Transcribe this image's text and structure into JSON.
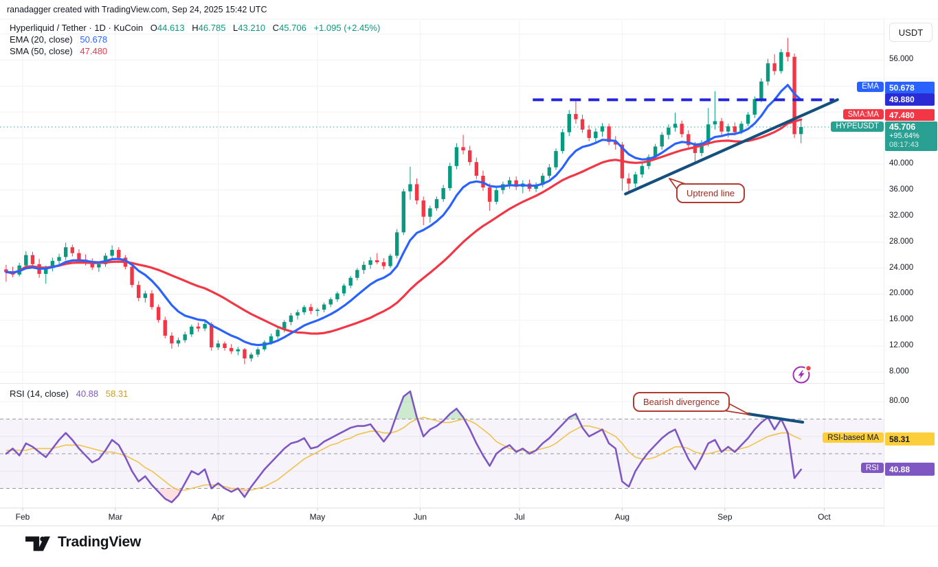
{
  "header": {
    "attribution": "ranadagger created with TradingView.com, Sep 24, 2025 15:42 UTC"
  },
  "legend": {
    "symbol": "Hyperliquid / Tether · 1D · KuCoin",
    "o_label": "O",
    "o_value": "44.613",
    "h_label": "H",
    "h_value": "46.785",
    "l_label": "L",
    "l_value": "43.210",
    "c_label": "C",
    "c_value": "45.706",
    "change": "+1.095 (+2.45%)",
    "ema_label": "EMA (20, close)",
    "ema_value": "50.678",
    "sma_label": "SMA (50, close)",
    "sma_value": "47.480"
  },
  "rsi_legend": {
    "label": "RSI (14, close)",
    "rsi_value": "40.88",
    "ma_value": "58.31"
  },
  "axis": {
    "currency": "USDT",
    "price_ticks": [
      {
        "value": 56,
        "label": "56.000"
      },
      {
        "value": 40,
        "label": "40.000"
      },
      {
        "value": 36,
        "label": "36.000"
      },
      {
        "value": 32,
        "label": "32.000"
      },
      {
        "value": 28,
        "label": "28.000"
      },
      {
        "value": 24,
        "label": "24.000"
      },
      {
        "value": 20,
        "label": "20.000"
      },
      {
        "value": 16,
        "label": "16.000"
      },
      {
        "value": 12,
        "label": "12.000"
      },
      {
        "value": 8,
        "label": "8.000"
      }
    ],
    "ema_pill": "EMA",
    "ema_badge": "50.678",
    "level_badge": "49.880",
    "sma_pill": "SMA:MA",
    "sma_badge": "47.480",
    "symbol_pill": "HYPEUSDT",
    "last_price": "45.706",
    "last_change": "+95.64%",
    "countdown": "08:17:43",
    "rsi_tick": {
      "value": 80,
      "label": "80.00"
    },
    "rsi_ma_pill": "RSI-based MA",
    "rsi_ma_badge": "58.31",
    "rsi_pill": "RSI",
    "rsi_badge": "40.88"
  },
  "time_axis": {
    "months": [
      {
        "label": "Feb",
        "day": 5
      },
      {
        "label": "Mar",
        "day": 33
      },
      {
        "label": "Apr",
        "day": 64
      },
      {
        "label": "May",
        "day": 94
      },
      {
        "label": "Jun",
        "day": 125
      },
      {
        "label": "Jul",
        "day": 155
      },
      {
        "label": "Aug",
        "day": 186
      },
      {
        "label": "Sep",
        "day": 217
      },
      {
        "label": "Oct",
        "day": 247
      }
    ]
  },
  "annotations": {
    "uptrend": "Uptrend line",
    "divergence": "Bearish divergence"
  },
  "logo": {
    "text": "TradingView"
  },
  "colors": {
    "up": "#089981",
    "down": "#f23645",
    "ema": "#2962ff",
    "sma": "#f23645",
    "level": "#2323dd",
    "trend": "#14507d",
    "rsi": "#7e57c2",
    "rsi_ma": "#f0c24a",
    "last": "#2aa092",
    "grid": "#eff1f4",
    "badge_yellow": "#fbce3a",
    "band_fill": "rgba(126,87,194,0.07)",
    "over_fill": "rgba(76,175,80,0.28)",
    "under_fill": "rgba(242,54,69,0.16)",
    "guide": "#9598a1",
    "text": "#131722"
  },
  "chart_data": {
    "type": "candlestick",
    "title": "Hyperliquid / Tether · 1D · KuCoin",
    "symbol": "HYPEUSDT",
    "interval": "1D",
    "bar_days": 2,
    "start_day": 0,
    "price_ylim": [
      6.3,
      62.1
    ],
    "price_grid_step": 4,
    "rsi_ylim": [
      20,
      90
    ],
    "rsi_levels": {
      "upper": 70,
      "middle": 50,
      "lower": 30
    },
    "last_price": 45.706,
    "ema_period": 20,
    "sma_period": 50,
    "rsi_period": 14,
    "candles": [
      [
        23.8,
        24.5,
        21.9,
        23.4
      ],
      [
        23.4,
        24.2,
        22.6,
        23.0
      ],
      [
        23.0,
        24.8,
        22.7,
        24.4
      ],
      [
        24.4,
        26.6,
        24.0,
        26.0
      ],
      [
        26.0,
        26.5,
        24.2,
        24.6
      ],
      [
        24.6,
        25.4,
        22.5,
        23.1
      ],
      [
        23.1,
        24.4,
        21.6,
        24.0
      ],
      [
        24.0,
        25.6,
        23.5,
        25.1
      ],
      [
        25.1,
        26.2,
        24.4,
        25.7
      ],
      [
        25.7,
        27.9,
        25.2,
        27.2
      ],
      [
        27.2,
        27.6,
        25.8,
        26.3
      ],
      [
        26.3,
        26.9,
        24.9,
        25.3
      ],
      [
        25.3,
        26.1,
        24.4,
        24.8
      ],
      [
        24.8,
        25.5,
        23.7,
        24.1
      ],
      [
        24.1,
        25.0,
        23.4,
        24.6
      ],
      [
        24.6,
        26.3,
        24.2,
        25.9
      ],
      [
        25.9,
        27.5,
        25.4,
        26.8
      ],
      [
        26.8,
        27.2,
        25.2,
        25.6
      ],
      [
        25.6,
        26.0,
        23.8,
        24.2
      ],
      [
        24.2,
        24.6,
        21.0,
        21.4
      ],
      [
        21.4,
        22.0,
        18.9,
        19.4
      ],
      [
        19.4,
        20.5,
        18.7,
        20.1
      ],
      [
        20.1,
        20.6,
        17.6,
        18.0
      ],
      [
        18.0,
        18.4,
        15.6,
        16.0
      ],
      [
        16.0,
        16.5,
        13.2,
        13.6
      ],
      [
        13.6,
        14.1,
        11.6,
        12.4
      ],
      [
        12.4,
        13.3,
        11.9,
        12.9
      ],
      [
        12.9,
        14.2,
        12.5,
        13.8
      ],
      [
        13.8,
        15.3,
        13.4,
        15.0
      ],
      [
        15.0,
        15.6,
        14.2,
        14.7
      ],
      [
        14.7,
        15.8,
        14.3,
        15.4
      ],
      [
        15.4,
        15.7,
        11.3,
        11.8
      ],
      [
        11.8,
        12.9,
        11.4,
        12.4
      ],
      [
        12.4,
        12.7,
        11.3,
        11.7
      ],
      [
        11.7,
        12.3,
        10.8,
        11.2
      ],
      [
        11.2,
        11.9,
        10.6,
        11.5
      ],
      [
        11.5,
        11.7,
        9.2,
        10.1
      ],
      [
        10.1,
        11.0,
        9.6,
        10.7
      ],
      [
        10.7,
        11.8,
        10.3,
        11.5
      ],
      [
        11.5,
        12.9,
        11.2,
        12.6
      ],
      [
        12.6,
        13.9,
        12.2,
        13.5
      ],
      [
        13.5,
        14.8,
        13.1,
        14.5
      ],
      [
        14.5,
        16.0,
        14.1,
        15.7
      ],
      [
        15.7,
        17.1,
        15.2,
        16.7
      ],
      [
        16.7,
        17.6,
        16.1,
        17.2
      ],
      [
        17.2,
        18.3,
        16.8,
        18.0
      ],
      [
        18.0,
        18.5,
        16.9,
        17.4
      ],
      [
        17.4,
        17.9,
        16.6,
        17.6
      ],
      [
        17.6,
        18.7,
        17.2,
        18.4
      ],
      [
        18.4,
        19.5,
        18.0,
        19.2
      ],
      [
        19.2,
        20.4,
        18.8,
        20.1
      ],
      [
        20.1,
        21.6,
        19.7,
        21.3
      ],
      [
        21.3,
        22.8,
        20.9,
        22.5
      ],
      [
        22.5,
        24.0,
        22.1,
        23.7
      ],
      [
        23.7,
        25.0,
        23.1,
        24.5
      ],
      [
        24.5,
        25.7,
        23.9,
        25.2
      ],
      [
        25.2,
        26.3,
        24.6,
        24.9
      ],
      [
        24.9,
        25.5,
        23.8,
        24.3
      ],
      [
        24.3,
        26.2,
        24.0,
        25.9
      ],
      [
        25.9,
        30.0,
        25.5,
        29.5
      ],
      [
        29.5,
        36.2,
        29.1,
        35.8
      ],
      [
        35.8,
        39.6,
        34.5,
        36.9
      ],
      [
        36.9,
        37.8,
        33.8,
        34.4
      ],
      [
        34.4,
        35.0,
        30.6,
        31.9
      ],
      [
        31.9,
        33.6,
        31.0,
        33.2
      ],
      [
        33.2,
        35.0,
        32.8,
        34.6
      ],
      [
        34.6,
        36.8,
        34.2,
        36.3
      ],
      [
        36.3,
        40.2,
        35.9,
        39.7
      ],
      [
        39.7,
        43.2,
        39.2,
        42.6
      ],
      [
        42.6,
        44.5,
        41.5,
        42.1
      ],
      [
        42.1,
        42.8,
        39.8,
        40.3
      ],
      [
        40.3,
        41.0,
        37.7,
        38.2
      ],
      [
        38.2,
        39.0,
        35.9,
        36.4
      ],
      [
        36.4,
        37.0,
        32.8,
        34.2
      ],
      [
        34.2,
        36.5,
        33.8,
        36.0
      ],
      [
        36.0,
        37.3,
        35.4,
        36.9
      ],
      [
        36.9,
        38.0,
        36.2,
        37.5
      ],
      [
        37.5,
        38.1,
        36.0,
        36.5
      ],
      [
        36.5,
        37.5,
        35.5,
        37.0
      ],
      [
        37.0,
        37.6,
        35.8,
        36.2
      ],
      [
        36.2,
        37.2,
        35.7,
        36.8
      ],
      [
        36.8,
        38.6,
        36.4,
        38.2
      ],
      [
        38.2,
        40.0,
        37.8,
        39.5
      ],
      [
        39.5,
        42.4,
        39.1,
        42.0
      ],
      [
        42.0,
        45.4,
        41.6,
        44.9
      ],
      [
        44.9,
        48.3,
        44.3,
        47.7
      ],
      [
        47.7,
        49.9,
        46.2,
        46.9
      ],
      [
        46.9,
        47.6,
        44.8,
        45.3
      ],
      [
        45.3,
        46.0,
        43.5,
        44.0
      ],
      [
        44.0,
        45.5,
        43.4,
        45.0
      ],
      [
        45.0,
        46.3,
        44.2,
        45.8
      ],
      [
        45.8,
        46.2,
        42.9,
        43.4
      ],
      [
        43.4,
        44.3,
        42.2,
        43.0
      ],
      [
        43.0,
        43.4,
        35.9,
        37.8
      ],
      [
        37.8,
        38.6,
        35.6,
        37.0
      ],
      [
        37.0,
        38.8,
        36.4,
        38.4
      ],
      [
        38.4,
        40.1,
        37.9,
        39.7
      ],
      [
        39.7,
        41.5,
        39.2,
        41.1
      ],
      [
        41.1,
        43.1,
        40.6,
        42.7
      ],
      [
        42.7,
        44.9,
        42.2,
        44.5
      ],
      [
        44.5,
        46.1,
        43.8,
        45.6
      ],
      [
        45.6,
        47.9,
        45.0,
        46.2
      ],
      [
        46.2,
        46.7,
        44.1,
        44.6
      ],
      [
        44.6,
        45.2,
        42.4,
        42.9
      ],
      [
        42.9,
        43.4,
        40.4,
        41.7
      ],
      [
        41.7,
        43.7,
        41.2,
        43.3
      ],
      [
        43.3,
        48.6,
        42.7,
        46.1
      ],
      [
        46.1,
        51.2,
        45.3,
        46.6
      ],
      [
        46.6,
        47.1,
        44.3,
        45.0
      ],
      [
        45.0,
        46.2,
        44.1,
        45.8
      ],
      [
        45.8,
        46.4,
        44.4,
        44.9
      ],
      [
        44.9,
        46.6,
        44.6,
        46.2
      ],
      [
        46.2,
        48.0,
        45.8,
        47.6
      ],
      [
        47.6,
        50.4,
        47.1,
        50.0
      ],
      [
        50.0,
        53.2,
        49.5,
        52.7
      ],
      [
        52.7,
        56.2,
        52.1,
        55.5
      ],
      [
        55.5,
        56.9,
        53.7,
        54.3
      ],
      [
        54.3,
        57.7,
        53.9,
        57.2
      ],
      [
        57.2,
        59.4,
        55.8,
        56.5
      ],
      [
        56.5,
        57.0,
        44.0,
        44.6
      ],
      [
        44.613,
        46.785,
        43.21,
        45.706
      ]
    ],
    "rsi": [
      50,
      53,
      49,
      56,
      54,
      51,
      48,
      53,
      58,
      62,
      58,
      53,
      49,
      45,
      47,
      52,
      58,
      55,
      48,
      40,
      34,
      37,
      32,
      28,
      24,
      22,
      26,
      33,
      40,
      38,
      41,
      30,
      33,
      30,
      28,
      30,
      25,
      31,
      36,
      41,
      45,
      49,
      53,
      56,
      57,
      59,
      53,
      54,
      57,
      59,
      61,
      63,
      65,
      66,
      66,
      67,
      62,
      57,
      62,
      73,
      83,
      86,
      71,
      60,
      64,
      66,
      69,
      73,
      76,
      71,
      64,
      56,
      49,
      43,
      50,
      53,
      55,
      51,
      53,
      50,
      52,
      56,
      59,
      63,
      67,
      71,
      73,
      65,
      60,
      62,
      64,
      56,
      53,
      34,
      31,
      40,
      46,
      51,
      55,
      59,
      62,
      64,
      55,
      47,
      41,
      48,
      56,
      58,
      51,
      54,
      51,
      55,
      59,
      64,
      68,
      71,
      64,
      70,
      62,
      36,
      40.9
    ],
    "rsi_ma": [
      52,
      52,
      52,
      52,
      53,
      53,
      53,
      53,
      54,
      55,
      55,
      55,
      54,
      53,
      52,
      51,
      51,
      50,
      49,
      47,
      45,
      42,
      40,
      37,
      34,
      31,
      29,
      29,
      30,
      31,
      32,
      32,
      32,
      31,
      30,
      30,
      29,
      29,
      30,
      31,
      33,
      35,
      38,
      41,
      44,
      47,
      49,
      51,
      53,
      55,
      56,
      58,
      59,
      61,
      62,
      63,
      63,
      62,
      62,
      63,
      65,
      68,
      70,
      71,
      70,
      69,
      68,
      68,
      69,
      70,
      69,
      67,
      64,
      61,
      57,
      55,
      53,
      52,
      52,
      51,
      52,
      53,
      54,
      56,
      59,
      62,
      64,
      66,
      66,
      65,
      64,
      62,
      60,
      56,
      51,
      48,
      47,
      47,
      48,
      50,
      52,
      54,
      54,
      53,
      51,
      50,
      50,
      51,
      52,
      52,
      52,
      53,
      54,
      56,
      58,
      60,
      61,
      62,
      62,
      60,
      58.3
    ],
    "overlays": {
      "level_line": {
        "price": 49.88,
        "day_start": 159,
        "day_end": 250
      },
      "uptrend_line": {
        "day1": 187,
        "price1": 35.4,
        "day2": 251,
        "price2": 49.9
      },
      "divergence_line": {
        "day1": 224,
        "rsi1": 73.0,
        "day2": 240.5,
        "rsi2": 68.2
      },
      "last_price_line": 45.706
    }
  }
}
